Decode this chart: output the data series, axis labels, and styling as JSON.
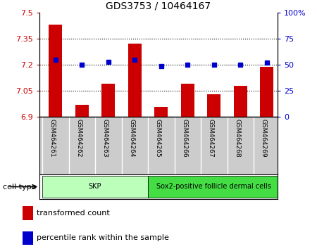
{
  "title": "GDS3753 / 10464167",
  "samples": [
    "GSM464261",
    "GSM464262",
    "GSM464263",
    "GSM464264",
    "GSM464265",
    "GSM464266",
    "GSM464267",
    "GSM464268",
    "GSM464269"
  ],
  "transformed_counts": [
    7.43,
    6.97,
    7.09,
    7.32,
    6.96,
    7.09,
    7.03,
    7.08,
    7.19
  ],
  "percentile_ranks": [
    55,
    50,
    53,
    55,
    49,
    50,
    50,
    50,
    52
  ],
  "ylim_left": [
    6.9,
    7.5
  ],
  "ylim_right": [
    0,
    100
  ],
  "yticks_left": [
    6.9,
    7.05,
    7.2,
    7.35,
    7.5
  ],
  "yticks_right": [
    0,
    25,
    50,
    75,
    100
  ],
  "ytick_labels_left": [
    "6.9",
    "7.05",
    "7.2",
    "7.35",
    "7.5"
  ],
  "ytick_labels_right": [
    "0",
    "25",
    "50",
    "75",
    "100%"
  ],
  "hlines": [
    7.05,
    7.2,
    7.35
  ],
  "bar_color": "#cc0000",
  "dot_color": "#0000cc",
  "bar_width": 0.5,
  "cell_type_groups": [
    {
      "label": "SKP",
      "start": -0.5,
      "end": 3.5,
      "color": "#bbffbb"
    },
    {
      "label": "Sox2-positive follicle dermal cells",
      "start": 3.5,
      "end": 8.5,
      "color": "#44dd44"
    }
  ],
  "cell_type_label": "cell type",
  "legend_items": [
    {
      "label": "transformed count",
      "color": "#cc0000"
    },
    {
      "label": "percentile rank within the sample",
      "color": "#0000cc"
    }
  ],
  "bg_color": "#ffffff",
  "tick_area_color": "#cccccc",
  "xlim": [
    -0.6,
    8.4
  ]
}
